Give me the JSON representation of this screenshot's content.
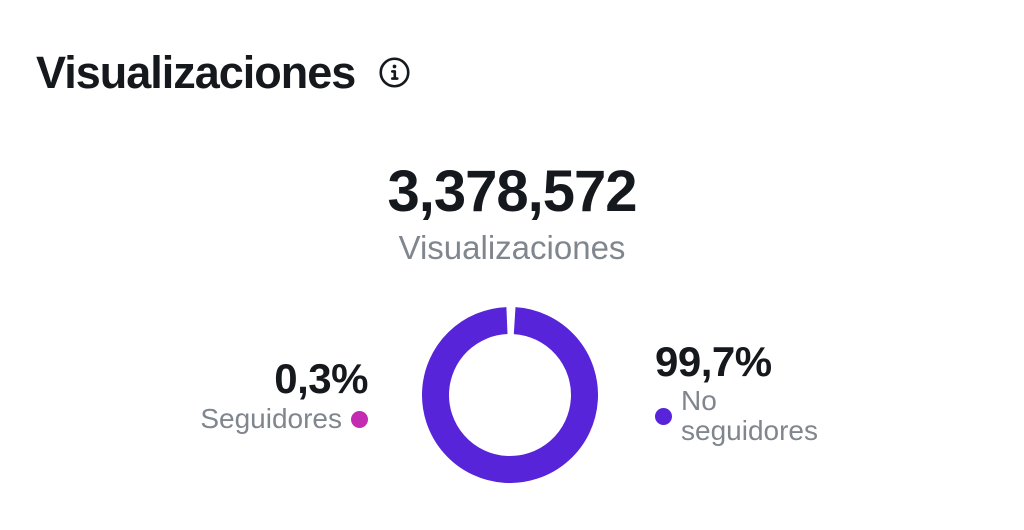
{
  "header": {
    "title": "Visualizaciones"
  },
  "summary": {
    "value": "3,378,572",
    "label": "Visualizaciones"
  },
  "chart_data": {
    "type": "pie",
    "donut": true,
    "title": "Visualizaciones",
    "total_label": "3,378,572",
    "total_sublabel": "Visualizaciones",
    "segments": [
      {
        "label": "Seguidores",
        "percent_label": "0,3%",
        "value": 0.3,
        "color": "#C32BB3"
      },
      {
        "label": "No seguidores",
        "percent_label": "99,7%",
        "value": 99.7,
        "color": "#5724D9"
      }
    ],
    "legend_position": "sides",
    "gap_position": "top"
  },
  "colors": {
    "ink": "#15181C",
    "muted": "#80868E",
    "followers": "#C32BB3",
    "non_followers": "#5724D9",
    "background": "#FFFFFF"
  }
}
